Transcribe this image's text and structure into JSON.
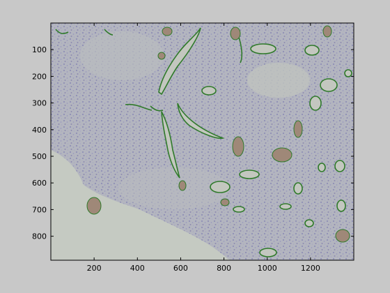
{
  "window": {
    "background": "#c8c8c8"
  },
  "axes": {
    "x_ticks": [
      "200",
      "400",
      "600",
      "800",
      "1000",
      "1200"
    ],
    "y_ticks": [
      "100",
      "200",
      "300",
      "400",
      "500",
      "600",
      "700",
      "800"
    ],
    "x_range": [
      0,
      1400
    ],
    "y_range": [
      0,
      890
    ],
    "y_reversed": true
  },
  "image": {
    "subject": "histology tissue section with green-outlined vessel segmentation",
    "tissue_color": "#aeb0bd",
    "lumen_color": "#c3c8c0",
    "outline_color": "#2f7a2a",
    "blood_color": "#9a8470"
  }
}
